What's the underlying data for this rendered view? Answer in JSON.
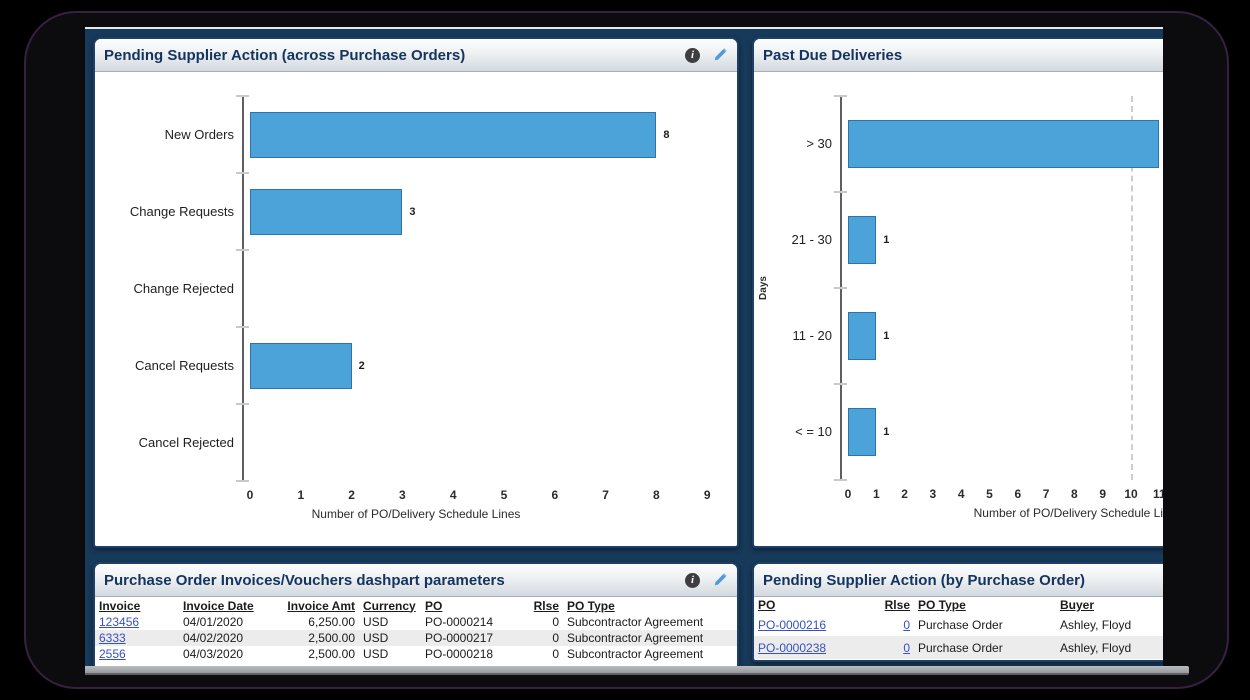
{
  "window": {
    "screen_background": "#17395a",
    "frame_color": "#0c0c0e"
  },
  "icons": {
    "info_glyph": "i",
    "info_name": "info-circle",
    "edit_name": "pencil"
  },
  "colors": {
    "bar_fill": "#4ba3da",
    "bar_border": "#2f74a6",
    "link": "#3751c1",
    "panel_header_text": "#14335f",
    "screen_background": "#17395a"
  },
  "panels": {
    "pending_across": {
      "title": "Pending Supplier Action (across Purchase Orders)"
    },
    "past_due": {
      "title": "Past Due Deliveries"
    },
    "invoices": {
      "title": "Purchase Order Invoices/Vouchers dashpart parameters"
    },
    "pending_by_po": {
      "title": "Pending Supplier Action (by Purchase Order)"
    }
  },
  "chart_data": [
    {
      "type": "bar",
      "orientation": "horizontal",
      "title": "Pending Supplier Action (across Purchase Orders)",
      "categories": [
        "New Orders",
        "Change Requests",
        "Change Rejected",
        "Cancel Requests",
        "Cancel Rejected"
      ],
      "values": [
        8,
        3,
        0,
        2,
        0
      ],
      "xlabel": "Number of PO/Delivery Schedule Lines",
      "ylabel": "",
      "xticks": [
        0,
        1,
        2,
        3,
        4,
        5,
        6,
        7,
        8,
        9
      ],
      "xlim": [
        0,
        9
      ],
      "grid": false,
      "value_labels": true
    },
    {
      "type": "bar",
      "orientation": "horizontal",
      "title": "Past Due Deliveries",
      "categories": [
        "> 30",
        "21 - 30",
        "11 - 20",
        "< = 10"
      ],
      "values": [
        11,
        1,
        1,
        1
      ],
      "xlabel": "Number of PO/Delivery Schedule Lines",
      "ylabel": "Days",
      "xticks": [
        0,
        1,
        2,
        3,
        4,
        5,
        6,
        7,
        8,
        9,
        10,
        11
      ],
      "xlim": [
        0,
        11
      ],
      "refline_x": 10,
      "grid": false,
      "value_labels": true
    }
  ],
  "tables": {
    "invoices": {
      "columns": [
        {
          "label": "Invoice",
          "link": true
        },
        {
          "label": "Invoice Date"
        },
        {
          "label": "Invoice Amt",
          "align": "right"
        },
        {
          "label": "Currency"
        },
        {
          "label": "PO"
        },
        {
          "label": "Rlse",
          "align": "right"
        },
        {
          "label": "PO Type"
        }
      ],
      "rows": [
        [
          "123456",
          "04/01/2020",
          "6,250.00",
          "USD",
          "PO-0000214",
          "0",
          "Subcontractor Agreement"
        ],
        [
          "6333",
          "04/02/2020",
          "2,500.00",
          "USD",
          "PO-0000217",
          "0",
          "Subcontractor Agreement"
        ],
        [
          "2556",
          "04/03/2020",
          "2,500.00",
          "USD",
          "PO-0000218",
          "0",
          "Subcontractor Agreement"
        ]
      ]
    },
    "pending_by_po": {
      "columns": [
        {
          "label": "PO",
          "link": true
        },
        {
          "label": "Rlse",
          "align": "right",
          "link": true
        },
        {
          "label": "PO Type"
        },
        {
          "label": "Buyer"
        }
      ],
      "rows": [
        [
          "PO-0000216",
          "0",
          "Purchase Order",
          "Ashley, Floyd"
        ],
        [
          "PO-0000238",
          "0",
          "Purchase Order",
          "Ashley, Floyd"
        ]
      ]
    }
  }
}
